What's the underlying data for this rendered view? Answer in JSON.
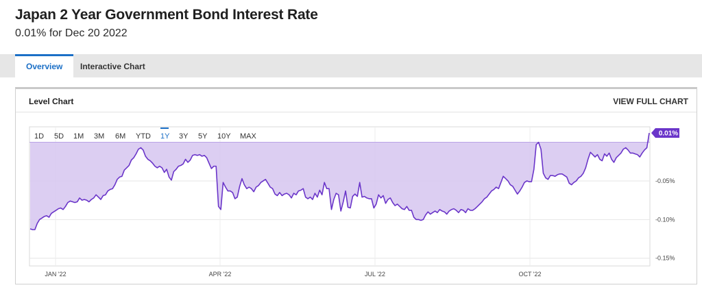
{
  "header": {
    "title": "Japan 2 Year Government Bond Interest Rate",
    "subtitle": "0.01% for Dec 20 2022"
  },
  "tabs": [
    {
      "label": "Overview",
      "active": true
    },
    {
      "label": "Interactive Chart",
      "active": false
    }
  ],
  "panel": {
    "title": "Level Chart",
    "view_full_label": "VIEW FULL CHART"
  },
  "range_buttons": {
    "labels": [
      "1D",
      "5D",
      "1M",
      "3M",
      "6M",
      "YTD",
      "1Y",
      "3Y",
      "5Y",
      "10Y",
      "MAX"
    ],
    "active": "1Y"
  },
  "colors": {
    "accent": "#1b6fc6",
    "line": "#6a35c9",
    "fill": "#d8c9f1",
    "badge": "#6a35c9"
  },
  "chart_data": {
    "type": "area",
    "title": "",
    "xlabel": "",
    "ylabel": "",
    "x_tick_labels": [
      "JAN '22",
      "APR '22",
      "JUL '22",
      "OCT '22"
    ],
    "y_tick_labels": [
      "-0.05%",
      "-0.10%",
      "-0.15%"
    ],
    "y_ticks": [
      0,
      -0.05,
      -0.1,
      -0.15
    ],
    "ylim": [
      -0.16,
      0.02
    ],
    "baseline": 0,
    "grid": true,
    "last_value_label": "0.01%",
    "series": [
      {
        "values": [
          -0.112,
          -0.113,
          -0.113,
          -0.105,
          -0.1,
          -0.098,
          -0.096,
          -0.095,
          -0.097,
          -0.092,
          -0.09,
          -0.088,
          -0.086,
          -0.085,
          -0.087,
          -0.083,
          -0.078,
          -0.076,
          -0.077,
          -0.078,
          -0.077,
          -0.072,
          -0.075,
          -0.074,
          -0.075,
          -0.077,
          -0.074,
          -0.072,
          -0.068,
          -0.071,
          -0.074,
          -0.069,
          -0.068,
          -0.063,
          -0.061,
          -0.06,
          -0.055,
          -0.048,
          -0.045,
          -0.044,
          -0.036,
          -0.033,
          -0.03,
          -0.023,
          -0.02,
          -0.015,
          -0.009,
          -0.007,
          -0.01,
          -0.018,
          -0.022,
          -0.024,
          -0.027,
          -0.031,
          -0.033,
          -0.031,
          -0.033,
          -0.039,
          -0.035,
          -0.045,
          -0.049,
          -0.038,
          -0.035,
          -0.031,
          -0.03,
          -0.028,
          -0.022,
          -0.026,
          -0.023,
          -0.017,
          -0.016,
          -0.017,
          -0.016,
          -0.018,
          -0.017,
          -0.02,
          -0.027,
          -0.034,
          -0.031,
          -0.031,
          -0.083,
          -0.087,
          -0.052,
          -0.058,
          -0.063,
          -0.063,
          -0.065,
          -0.073,
          -0.071,
          -0.057,
          -0.047,
          -0.055,
          -0.06,
          -0.058,
          -0.06,
          -0.064,
          -0.058,
          -0.056,
          -0.052,
          -0.05,
          -0.048,
          -0.053,
          -0.058,
          -0.06,
          -0.067,
          -0.069,
          -0.065,
          -0.069,
          -0.067,
          -0.066,
          -0.068,
          -0.072,
          -0.066,
          -0.068,
          -0.063,
          -0.062,
          -0.06,
          -0.071,
          -0.073,
          -0.071,
          -0.074,
          -0.066,
          -0.071,
          -0.062,
          -0.068,
          -0.052,
          -0.06,
          -0.06,
          -0.087,
          -0.074,
          -0.066,
          -0.068,
          -0.089,
          -0.077,
          -0.063,
          -0.084,
          -0.085,
          -0.07,
          -0.067,
          -0.07,
          -0.052,
          -0.071,
          -0.07,
          -0.072,
          -0.073,
          -0.073,
          -0.085,
          -0.08,
          -0.068,
          -0.072,
          -0.069,
          -0.079,
          -0.074,
          -0.072,
          -0.078,
          -0.082,
          -0.08,
          -0.083,
          -0.086,
          -0.087,
          -0.083,
          -0.088,
          -0.088,
          -0.097,
          -0.1,
          -0.1,
          -0.101,
          -0.1,
          -0.094,
          -0.09,
          -0.093,
          -0.091,
          -0.089,
          -0.091,
          -0.087,
          -0.089,
          -0.09,
          -0.093,
          -0.089,
          -0.087,
          -0.086,
          -0.088,
          -0.091,
          -0.087,
          -0.088,
          -0.091,
          -0.086,
          -0.088,
          -0.088,
          -0.086,
          -0.083,
          -0.08,
          -0.077,
          -0.073,
          -0.071,
          -0.067,
          -0.063,
          -0.061,
          -0.058,
          -0.06,
          -0.052,
          -0.044,
          -0.047,
          -0.05,
          -0.055,
          -0.057,
          -0.062,
          -0.067,
          -0.063,
          -0.058,
          -0.052,
          -0.05,
          -0.051,
          -0.051,
          -0.035,
          -0.003,
          0.0,
          -0.009,
          -0.04,
          -0.046,
          -0.048,
          -0.043,
          -0.043,
          -0.044,
          -0.042,
          -0.041,
          -0.041,
          -0.043,
          -0.045,
          -0.053,
          -0.055,
          -0.052,
          -0.05,
          -0.046,
          -0.044,
          -0.04,
          -0.033,
          -0.022,
          -0.013,
          -0.016,
          -0.019,
          -0.016,
          -0.022,
          -0.024,
          -0.015,
          -0.018,
          -0.014,
          -0.022,
          -0.026,
          -0.02,
          -0.017,
          -0.014,
          -0.009,
          -0.007,
          -0.01,
          -0.014,
          -0.014,
          -0.015,
          -0.016,
          -0.019,
          -0.014,
          -0.01,
          -0.007,
          0.012
        ]
      }
    ]
  }
}
